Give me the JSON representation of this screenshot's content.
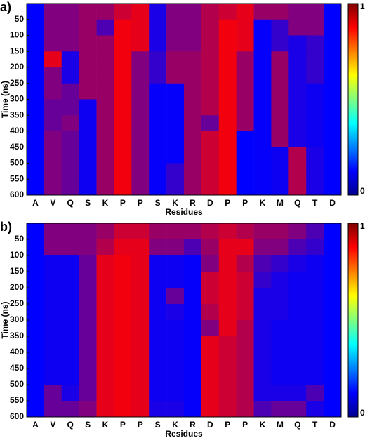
{
  "chart_data": [
    {
      "type": "heatmap",
      "panel_label": "a)",
      "x_label": "Residues",
      "y_label": "Time (ns)",
      "categories": [
        "A",
        "V",
        "Q",
        "S",
        "K",
        "P",
        "P",
        "S",
        "K",
        "R",
        "D",
        "P",
        "P",
        "K",
        "M",
        "Q",
        "T",
        "D"
      ],
      "bins": [
        0,
        50,
        100,
        150,
        200,
        250,
        300,
        350,
        400,
        450,
        500,
        550,
        600
      ],
      "ylim": [
        0,
        600
      ],
      "yticks": [
        50,
        100,
        150,
        200,
        250,
        300,
        350,
        400,
        450,
        500,
        550,
        600
      ],
      "zlim": [
        0,
        1
      ],
      "colorbar_ticks": [
        1,
        0
      ],
      "cell_colors": [
        "#0000ff",
        "#ff0000"
      ],
      "z": [
        [
          0,
          0,
          0,
          0,
          0,
          0,
          0,
          0,
          0,
          0,
          0,
          0
        ],
        [
          0.5,
          0.5,
          0.5,
          0.9,
          0.5,
          0.5,
          0.4,
          0.4,
          0.5,
          0.5,
          0.5,
          0.5
        ],
        [
          0.5,
          0.5,
          0.5,
          0.1,
          0.1,
          0.4,
          0.4,
          0.5,
          0.4,
          0.4,
          0.4,
          0.4
        ],
        [
          0.6,
          0.6,
          0.6,
          0.6,
          0.6,
          0.6,
          0.05,
          0.05,
          0.05,
          0.05,
          0.05,
          0.05
        ],
        [
          0.6,
          0.3,
          0.6,
          0.6,
          0.6,
          0.6,
          0.6,
          0.6,
          0.6,
          0.6,
          0.6,
          0.6
        ],
        [
          0.8,
          0.95,
          0.95,
          0.95,
          0.95,
          0.95,
          0.95,
          0.95,
          0.95,
          0.95,
          0.95,
          0.95
        ],
        [
          0.9,
          0.9,
          0.9,
          0.5,
          0.5,
          0.5,
          0.5,
          0.5,
          0.5,
          0.5,
          0.5,
          0.5
        ],
        [
          0.1,
          0.1,
          0.1,
          0.2,
          0.2,
          0.02,
          0.02,
          0.02,
          0.02,
          0.02,
          0.02,
          0.02
        ],
        [
          0.5,
          0.5,
          0.5,
          0.6,
          0.6,
          0.02,
          0.02,
          0.02,
          0.02,
          0.02,
          0.2,
          0.2
        ],
        [
          0.5,
          0.5,
          0.5,
          0.6,
          0.6,
          0.6,
          0.6,
          0.6,
          0.6,
          0.6,
          0.6,
          0.6
        ],
        [
          0.7,
          0.7,
          0.7,
          0.7,
          0.7,
          0.7,
          0.7,
          0.4,
          0.8,
          0.8,
          0.8,
          0.8
        ],
        [
          0.8,
          0.95,
          0.95,
          0.95,
          0.95,
          0.95,
          0.95,
          0.95,
          0.95,
          0.95,
          0.95,
          0.95
        ],
        [
          0.9,
          0.9,
          0.9,
          0.6,
          0.6,
          0.6,
          0.6,
          0.6,
          0,
          0,
          0,
          0
        ],
        [
          0.6,
          0.02,
          0.02,
          0.02,
          0.02,
          0.02,
          0.02,
          0.02,
          0.02,
          0.02,
          0.02,
          0.02
        ],
        [
          0.6,
          0.2,
          0.2,
          0.6,
          0.6,
          0.6,
          0.6,
          0.6,
          0.6,
          0.05,
          0.05,
          0.05
        ],
        [
          0.5,
          0.5,
          0.1,
          0.1,
          0.1,
          0.1,
          0.1,
          0.1,
          0.1,
          0.7,
          0.7,
          0.7
        ],
        [
          0.5,
          0.5,
          0.2,
          0.2,
          0.2,
          0.05,
          0.05,
          0.05,
          0.05,
          0.1,
          0.1,
          0.1
        ],
        [
          0,
          0,
          0,
          0,
          0,
          0,
          0,
          0,
          0,
          0,
          0,
          0
        ]
      ]
    },
    {
      "type": "heatmap",
      "panel_label": "b)",
      "x_label": "Residues",
      "y_label": "Time (ns)",
      "categories": [
        "A",
        "V",
        "Q",
        "S",
        "K",
        "P",
        "P",
        "S",
        "K",
        "R",
        "D",
        "P",
        "P",
        "K",
        "M",
        "Q",
        "T",
        "D"
      ],
      "bins": [
        0,
        50,
        100,
        150,
        200,
        250,
        300,
        350,
        400,
        450,
        500,
        550,
        600
      ],
      "ylim": [
        0,
        600
      ],
      "yticks": [
        50,
        100,
        150,
        200,
        250,
        300,
        350,
        400,
        450,
        500,
        550,
        600
      ],
      "zlim": [
        0,
        1
      ],
      "colorbar_ticks": [
        1,
        0
      ],
      "cell_colors": [
        "#0000ff",
        "#ff0000"
      ],
      "z": [
        [
          0,
          0,
          0,
          0,
          0,
          0,
          0,
          0,
          0,
          0,
          0,
          0
        ],
        [
          0.5,
          0.5,
          0.05,
          0.05,
          0.05,
          0.05,
          0.05,
          0.05,
          0.05,
          0.05,
          0.4,
          0.4
        ],
        [
          0.5,
          0.5,
          0.05,
          0.05,
          0.05,
          0.05,
          0.05,
          0.05,
          0.05,
          0.05,
          0.1,
          0.4
        ],
        [
          0.5,
          0.5,
          0.4,
          0.4,
          0.4,
          0.4,
          0.4,
          0.4,
          0.4,
          0.4,
          0.4,
          0.5
        ],
        [
          0.6,
          0.7,
          0.9,
          0.9,
          0.9,
          0.9,
          0.9,
          0.9,
          0.9,
          0.9,
          0.9,
          0.9
        ],
        [
          0.8,
          0.9,
          0.95,
          0.95,
          0.95,
          0.95,
          0.95,
          0.95,
          0.95,
          0.95,
          0.95,
          0.95
        ],
        [
          0.8,
          0.9,
          0.9,
          0.9,
          0.9,
          0.9,
          0.9,
          0.9,
          0.9,
          0.9,
          0.9,
          0.9
        ],
        [
          0.6,
          0.5,
          0.05,
          0.05,
          0.05,
          0.05,
          0.05,
          0.05,
          0.05,
          0.05,
          0.05,
          0.1
        ],
        [
          0.6,
          0.5,
          0.05,
          0.05,
          0.4,
          0.1,
          0.05,
          0.05,
          0.05,
          0.05,
          0.05,
          0.1
        ],
        [
          0.6,
          0.3,
          0.02,
          0.02,
          0.02,
          0.02,
          0.02,
          0.02,
          0.02,
          0.02,
          0.02,
          0.02
        ],
        [
          0.7,
          0.6,
          0.5,
          0.8,
          0.8,
          0.7,
          0.5,
          0.9,
          0.9,
          0.9,
          0.9,
          0.9
        ],
        [
          0.8,
          0.9,
          0.9,
          0.9,
          0.9,
          0.9,
          0.9,
          0.8,
          0.8,
          0.8,
          0.8,
          0.8
        ],
        [
          0.7,
          0.9,
          0.7,
          0.8,
          0.8,
          0.8,
          0.7,
          0.7,
          0.7,
          0.7,
          0.7,
          0.7
        ],
        [
          0.6,
          0.5,
          0.3,
          0.2,
          0.1,
          0.1,
          0.1,
          0.1,
          0.1,
          0.1,
          0.1,
          0.3
        ],
        [
          0.6,
          0.5,
          0.2,
          0.1,
          0.1,
          0.1,
          0.05,
          0.05,
          0.05,
          0.05,
          0.1,
          0.4
        ],
        [
          0.5,
          0.3,
          0.1,
          0.05,
          0.05,
          0.05,
          0.05,
          0.05,
          0.05,
          0.05,
          0.1,
          0.4
        ],
        [
          0.3,
          0.2,
          0.05,
          0.05,
          0.05,
          0.05,
          0.05,
          0.05,
          0.05,
          0.05,
          0.3,
          0.1
        ],
        [
          0,
          0,
          0,
          0,
          0,
          0,
          0,
          0,
          0,
          0,
          0,
          0
        ]
      ]
    }
  ]
}
